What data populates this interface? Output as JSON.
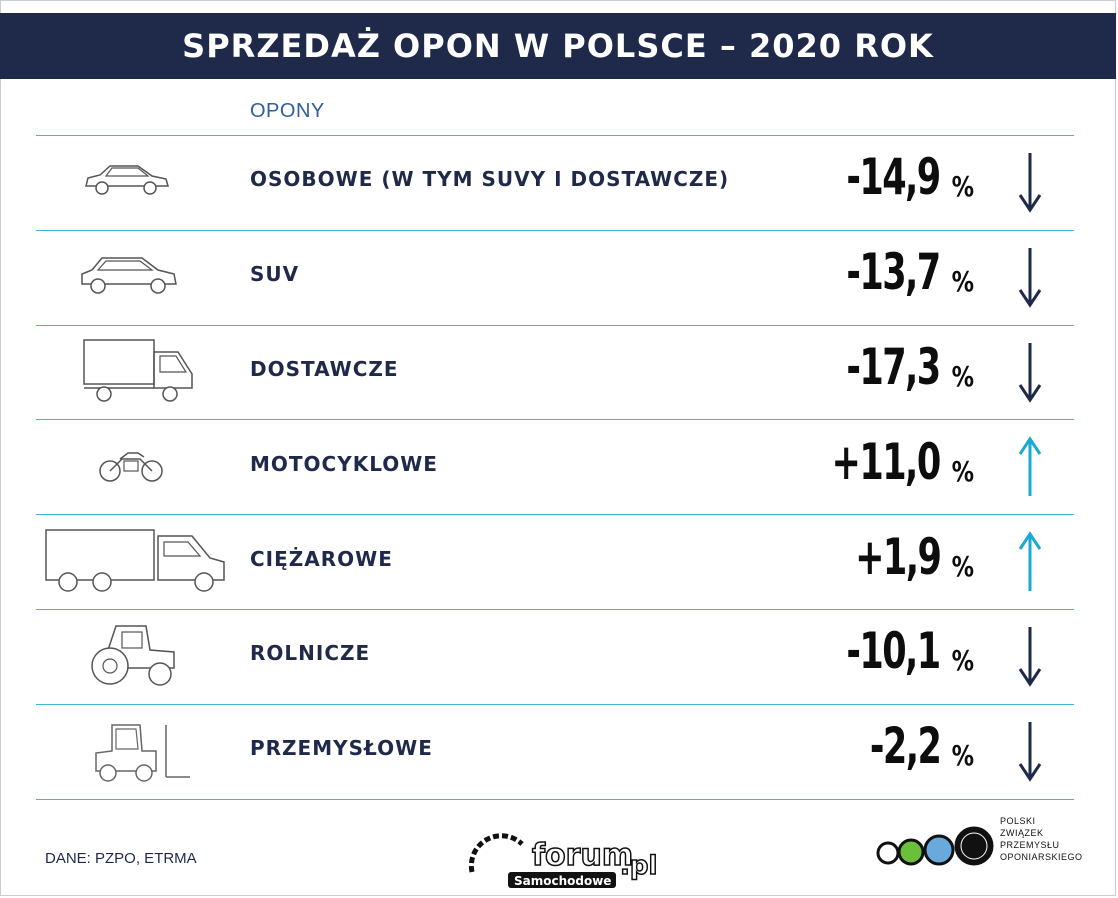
{
  "title": "SPRZEDAŻ OPON W POLSCE – 2020 ROK",
  "column_header": "OPONY",
  "colors": {
    "header_bg": "#1f2a4a",
    "rule": "#3fb6d3",
    "arrow_down": "#1f2a4a",
    "arrow_up": "#1aa9d1"
  },
  "chart_data": {
    "type": "table",
    "title": "SPRZEDAŻ OPON W POLSCE – 2020 ROK",
    "columns": [
      "OPONY",
      "%"
    ],
    "rows": [
      {
        "category": "OSOBOWE (W TYM SUVY I DOSTAWCZE)",
        "value": -14.9,
        "display": "-14,9",
        "unit": "%",
        "trend": "down",
        "icon": "car-icon"
      },
      {
        "category": "SUV",
        "value": -13.7,
        "display": "-13,7",
        "unit": "%",
        "trend": "down",
        "icon": "suv-icon"
      },
      {
        "category": "DOSTAWCZE",
        "value": -17.3,
        "display": "-17,3",
        "unit": "%",
        "trend": "down",
        "icon": "van-icon"
      },
      {
        "category": "MOTOCYKLOWE",
        "value": 11.0,
        "display": "+11,0",
        "unit": "%",
        "trend": "up",
        "icon": "motorcycle-icon"
      },
      {
        "category": "CIĘŻAROWE",
        "value": 1.9,
        "display": "+1,9",
        "unit": "%",
        "trend": "up",
        "icon": "truck-icon"
      },
      {
        "category": "ROLNICZE",
        "value": -10.1,
        "display": "-10,1",
        "unit": "%",
        "trend": "down",
        "icon": "tractor-icon"
      },
      {
        "category": "PRZEMYSŁOWE",
        "value": -2.2,
        "display": "-2,2",
        "unit": "%",
        "trend": "down",
        "icon": "forklift-icon"
      }
    ]
  },
  "source": "DANE: PZPO, ETRMA",
  "watermark": {
    "main": "forum",
    "suffix": ".pl",
    "sub": "Samochodowe"
  },
  "logo": {
    "lines": [
      "POLSKI",
      "ZWIĄZEK",
      "PRZEMYSŁU",
      "OPONIARSKIEGO"
    ]
  }
}
